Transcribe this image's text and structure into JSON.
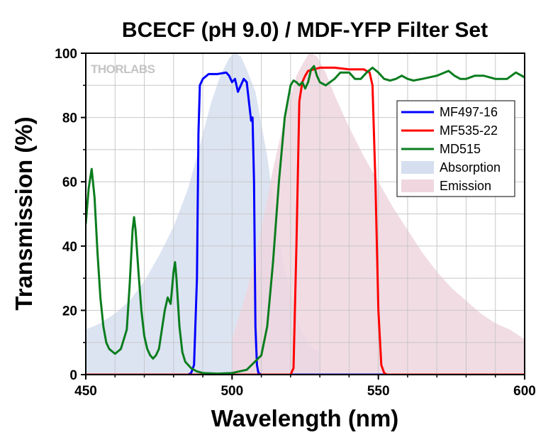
{
  "chart_data": {
    "type": "line",
    "title": "BCECF (pH 9.0) / MDF-YFP Filter Set",
    "xlabel": "Wavelength (nm)",
    "ylabel": "Transmission (%)",
    "xlim": [
      450,
      600
    ],
    "ylim": [
      0,
      100
    ],
    "x_ticks": [
      450,
      500,
      550,
      600
    ],
    "y_ticks": [
      0,
      20,
      40,
      60,
      80,
      100
    ],
    "grid": true,
    "legend_position": "right",
    "watermark": "THORLABS",
    "series": [
      {
        "name": "MF497-16",
        "kind": "line",
        "color": "#0000ff",
        "points": [
          [
            450,
            0
          ],
          [
            485,
            0
          ],
          [
            486,
            0.5
          ],
          [
            487,
            3
          ],
          [
            488,
            30
          ],
          [
            488.5,
            75
          ],
          [
            489,
            90
          ],
          [
            490,
            92
          ],
          [
            492,
            93.5
          ],
          [
            495,
            93.5
          ],
          [
            498,
            94
          ],
          [
            499,
            93
          ],
          [
            500,
            91
          ],
          [
            501,
            92
          ],
          [
            502,
            88
          ],
          [
            503,
            90
          ],
          [
            504,
            92
          ],
          [
            505,
            91
          ],
          [
            506,
            83
          ],
          [
            506.5,
            79
          ],
          [
            507,
            80
          ],
          [
            507.5,
            60
          ],
          [
            508,
            15
          ],
          [
            508.5,
            3
          ],
          [
            509,
            0.5
          ],
          [
            510,
            0
          ],
          [
            600,
            0
          ]
        ]
      },
      {
        "name": "MF535-22",
        "kind": "line",
        "color": "#ff0000",
        "points": [
          [
            450,
            0
          ],
          [
            520,
            0
          ],
          [
            521,
            2
          ],
          [
            522,
            40
          ],
          [
            523,
            85
          ],
          [
            524,
            91
          ],
          [
            525,
            93
          ],
          [
            526,
            94.5
          ],
          [
            528,
            95
          ],
          [
            530,
            95.5
          ],
          [
            535,
            95.5
          ],
          [
            540,
            95
          ],
          [
            545,
            95
          ],
          [
            547,
            94
          ],
          [
            548,
            90
          ],
          [
            549,
            60
          ],
          [
            550,
            20
          ],
          [
            551,
            3
          ],
          [
            552,
            0.5
          ],
          [
            553,
            0
          ],
          [
            600,
            0
          ]
        ]
      },
      {
        "name": "MD515",
        "kind": "line",
        "color": "#0a7d1e",
        "points": [
          [
            450,
            47
          ],
          [
            451,
            58
          ],
          [
            452,
            64
          ],
          [
            453,
            55
          ],
          [
            454,
            38
          ],
          [
            455,
            24
          ],
          [
            456,
            15
          ],
          [
            457,
            10
          ],
          [
            458,
            8
          ],
          [
            460,
            6.5
          ],
          [
            462,
            8
          ],
          [
            464,
            14
          ],
          [
            465,
            28
          ],
          [
            466,
            45
          ],
          [
            466.5,
            49
          ],
          [
            467,
            45
          ],
          [
            468,
            32
          ],
          [
            469,
            20
          ],
          [
            470,
            12
          ],
          [
            471,
            8
          ],
          [
            472,
            6
          ],
          [
            473,
            5
          ],
          [
            474,
            6
          ],
          [
            475,
            8
          ],
          [
            476,
            14
          ],
          [
            477,
            20
          ],
          [
            478,
            24
          ],
          [
            479,
            22
          ],
          [
            480,
            32
          ],
          [
            480.5,
            35
          ],
          [
            481,
            30
          ],
          [
            482,
            15
          ],
          [
            483,
            7
          ],
          [
            484,
            4
          ],
          [
            486,
            2
          ],
          [
            488,
            1
          ],
          [
            490,
            0.5
          ],
          [
            495,
            0.3
          ],
          [
            500,
            0.5
          ],
          [
            505,
            1.5
          ],
          [
            510,
            6
          ],
          [
            512,
            15
          ],
          [
            514,
            35
          ],
          [
            516,
            60
          ],
          [
            518,
            80
          ],
          [
            520,
            90
          ],
          [
            521,
            91.5
          ],
          [
            522,
            91
          ],
          [
            523,
            90
          ],
          [
            524,
            91
          ],
          [
            525,
            89
          ],
          [
            526,
            91
          ],
          [
            527,
            95
          ],
          [
            528,
            96
          ],
          [
            529,
            93
          ],
          [
            530,
            91
          ],
          [
            532,
            90
          ],
          [
            535,
            92
          ],
          [
            537,
            94
          ],
          [
            540,
            94
          ],
          [
            542,
            92
          ],
          [
            544,
            92
          ],
          [
            546,
            94
          ],
          [
            548,
            95.5
          ],
          [
            550,
            94
          ],
          [
            552,
            92
          ],
          [
            554,
            91.5
          ],
          [
            556,
            92
          ],
          [
            558,
            93
          ],
          [
            560,
            92
          ],
          [
            562,
            91.5
          ],
          [
            565,
            92
          ],
          [
            570,
            93
          ],
          [
            574,
            94.5
          ],
          [
            576,
            93
          ],
          [
            578,
            92
          ],
          [
            580,
            92
          ],
          [
            583,
            93
          ],
          [
            586,
            93
          ],
          [
            590,
            92
          ],
          [
            594,
            92
          ],
          [
            597,
            94
          ],
          [
            600,
            92.5
          ]
        ]
      },
      {
        "name": "Absorption",
        "kind": "area",
        "color": "#d6dff0",
        "points": [
          [
            450,
            14
          ],
          [
            455,
            16
          ],
          [
            460,
            19
          ],
          [
            465,
            23
          ],
          [
            470,
            29
          ],
          [
            475,
            37
          ],
          [
            480,
            46
          ],
          [
            485,
            58
          ],
          [
            488,
            68
          ],
          [
            490,
            75
          ],
          [
            493,
            85
          ],
          [
            496,
            93
          ],
          [
            499,
            98.5
          ],
          [
            501,
            100
          ],
          [
            503,
            99
          ],
          [
            505,
            95
          ],
          [
            508,
            88
          ],
          [
            510,
            78
          ],
          [
            512,
            68
          ],
          [
            514,
            55
          ],
          [
            516,
            43
          ],
          [
            518,
            33
          ],
          [
            520,
            25
          ],
          [
            522,
            18
          ],
          [
            524,
            13
          ],
          [
            526,
            10
          ],
          [
            528,
            8
          ],
          [
            530,
            7
          ],
          [
            530,
            0
          ],
          [
            450,
            0
          ]
        ]
      },
      {
        "name": "Emission",
        "kind": "area",
        "color": "#efd6df",
        "points": [
          [
            500,
            0
          ],
          [
            500,
            11
          ],
          [
            502,
            17
          ],
          [
            505,
            26
          ],
          [
            508,
            37
          ],
          [
            511,
            50
          ],
          [
            514,
            64
          ],
          [
            517,
            76
          ],
          [
            520,
            87
          ],
          [
            522,
            93
          ],
          [
            524,
            96.5
          ],
          [
            526,
            99.5
          ],
          [
            527,
            100
          ],
          [
            529,
            99
          ],
          [
            532,
            94
          ],
          [
            535,
            87
          ],
          [
            540,
            77
          ],
          [
            545,
            68
          ],
          [
            550,
            60
          ],
          [
            555,
            52
          ],
          [
            560,
            45
          ],
          [
            565,
            38
          ],
          [
            570,
            32
          ],
          [
            575,
            27
          ],
          [
            580,
            23
          ],
          [
            585,
            19
          ],
          [
            590,
            16
          ],
          [
            595,
            14
          ],
          [
            600,
            11
          ],
          [
            600,
            0
          ]
        ]
      }
    ]
  }
}
